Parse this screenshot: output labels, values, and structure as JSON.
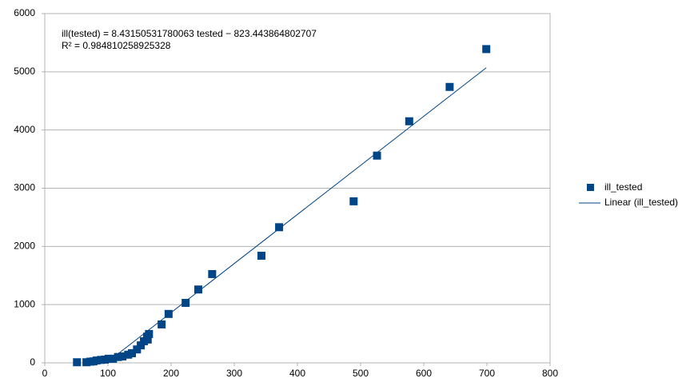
{
  "chart_data": {
    "type": "scatter",
    "xlim": [
      0,
      800
    ],
    "xticks": [
      0,
      100,
      200,
      300,
      400,
      500,
      600,
      700,
      800
    ],
    "ylim": [
      0,
      6000
    ],
    "yticks": [
      0,
      1000,
      2000,
      3000,
      4000,
      5000,
      6000
    ],
    "grid": true,
    "legend": "right",
    "series": [
      {
        "name": "ill_tested",
        "color": "#004586",
        "x": [
          51,
          66,
          72,
          77,
          82,
          89,
          95,
          101,
          108,
          116,
          123,
          132,
          138,
          146,
          152,
          157,
          162,
          163,
          165,
          185,
          196,
          223,
          243,
          265,
          343,
          371,
          489,
          526,
          577,
          641,
          699
        ],
        "values": [
          10,
          10,
          20,
          25,
          40,
          50,
          55,
          70,
          70,
          100,
          110,
          140,
          165,
          230,
          300,
          370,
          450,
          400,
          495,
          660,
          840,
          1030,
          1260,
          1525,
          1840,
          2330,
          2775,
          3560,
          4150,
          4740,
          5390
        ]
      }
    ],
    "trendline": {
      "name": "Linear (ill_tested)",
      "color": "#004586",
      "slope": 8.43150531780063,
      "intercept": -823.443864802707,
      "equation": "ill(tested) = 8.43150531780063 tested − 823.443864802707",
      "r2_label": "R² = 0.984810258925328"
    }
  }
}
